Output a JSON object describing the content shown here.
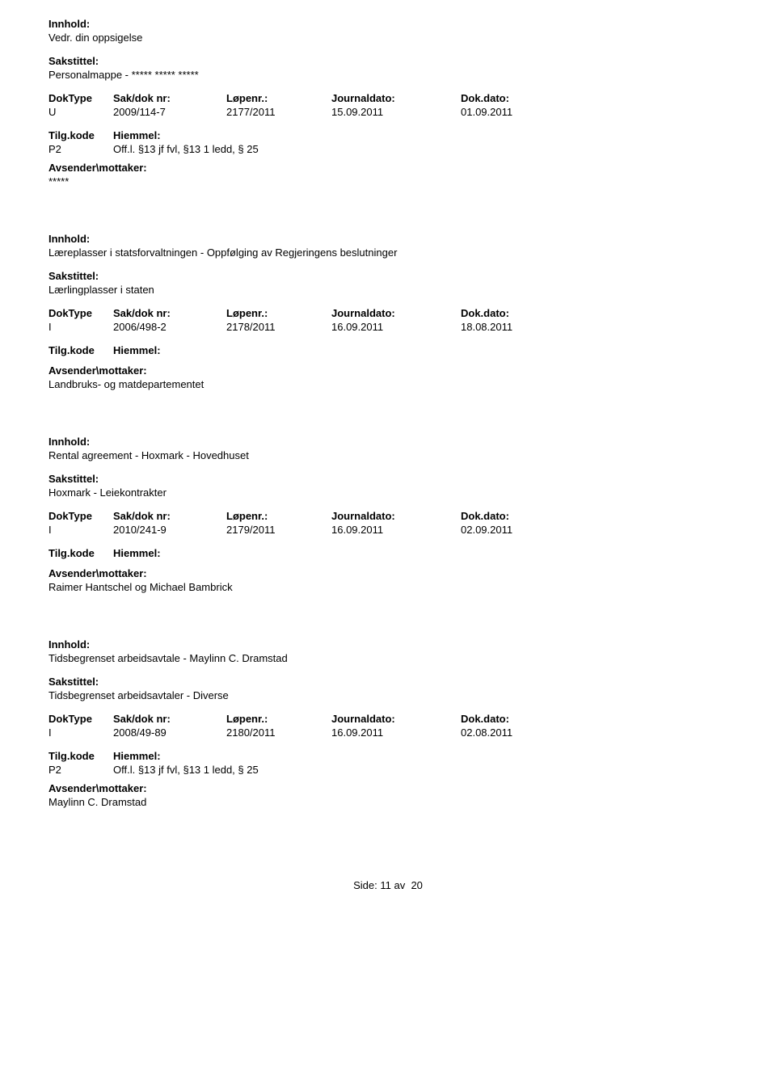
{
  "labels": {
    "innhold": "Innhold:",
    "sakstittel": "Sakstittel:",
    "doktype": "DokType",
    "sakdok": "Sak/dok nr:",
    "lopenr": "Løpenr.:",
    "journaldato": "Journaldato:",
    "dokdato": "Dok.dato:",
    "tilgkode": "Tilg.kode",
    "hjemmel": "Hiemmel:",
    "avsender": "Avsender\\mottaker:",
    "side": "Side:",
    "av": "av"
  },
  "footer": {
    "page": "11",
    "total": "20"
  },
  "records": [
    {
      "innhold": "Vedr. din oppsigelse",
      "sakstittel": "Personalmappe - ***** ***** *****",
      "doktype": "U",
      "sakdok": "2009/114-7",
      "lopenr": "2177/2011",
      "journaldato": "15.09.2011",
      "dokdato": "01.09.2011",
      "tilgkode": "P2",
      "hjemmel": "Off.l. §13 jf fvl, §13 1 ledd, § 25",
      "avsender": "*****"
    },
    {
      "innhold": "Læreplasser i statsforvaltningen - Oppfølging av Regjeringens beslutninger",
      "sakstittel": "Lærlingplasser i staten",
      "doktype": "I",
      "sakdok": "2006/498-2",
      "lopenr": "2178/2011",
      "journaldato": "16.09.2011",
      "dokdato": "18.08.2011",
      "tilgkode": "",
      "hjemmel": "",
      "avsender": "Landbruks- og matdepartementet"
    },
    {
      "innhold": "Rental agreement - Hoxmark - Hovedhuset",
      "sakstittel": "Hoxmark - Leiekontrakter",
      "doktype": "I",
      "sakdok": "2010/241-9",
      "lopenr": "2179/2011",
      "journaldato": "16.09.2011",
      "dokdato": "02.09.2011",
      "tilgkode": "",
      "hjemmel": "",
      "avsender": "Raimer Hantschel og Michael Bambrick"
    },
    {
      "innhold": "Tidsbegrenset arbeidsavtale - Maylinn C. Dramstad",
      "sakstittel": "Tidsbegrenset arbeidsavtaler - Diverse",
      "doktype": "I",
      "sakdok": "2008/49-89",
      "lopenr": "2180/2011",
      "journaldato": "16.09.2011",
      "dokdato": "02.08.2011",
      "tilgkode": "P2",
      "hjemmel": "Off.l. §13 jf fvl, §13 1 ledd, § 25",
      "avsender": "Maylinn C. Dramstad"
    }
  ]
}
